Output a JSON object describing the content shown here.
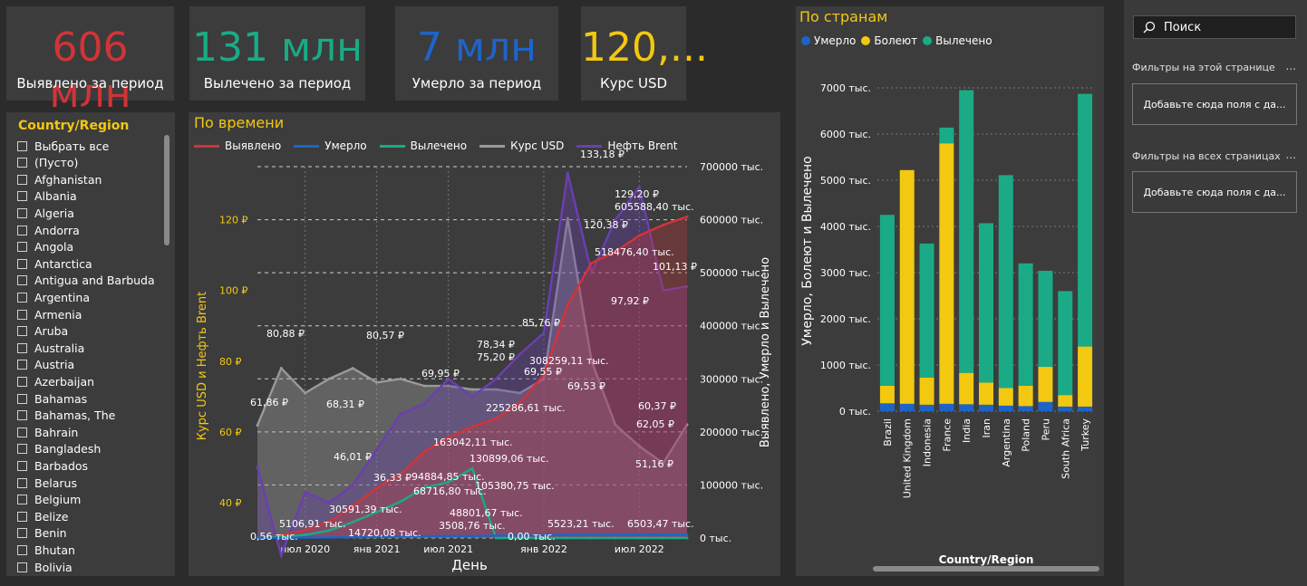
{
  "kpis": [
    {
      "value": "606 млн",
      "label": "Выявлено за период",
      "color": "#d13438"
    },
    {
      "value": "131 млн",
      "label": "Вылечено за период",
      "color": "#1aab86"
    },
    {
      "value": "7 млн",
      "label": "Умерло за период",
      "color": "#1e64c8"
    },
    {
      "value": "120,...",
      "label": "Курс USD",
      "color": "#f2c811"
    }
  ],
  "slicer": {
    "title": "Country/Region",
    "items": [
      "Выбрать все",
      "(Пусто)",
      "Afghanistan",
      "Albania",
      "Algeria",
      "Andorra",
      "Angola",
      "Antarctica",
      "Antigua and Barbuda",
      "Argentina",
      "Armenia",
      "Aruba",
      "Australia",
      "Austria",
      "Azerbaijan",
      "Bahamas",
      "Bahamas, The",
      "Bahrain",
      "Bangladesh",
      "Barbados",
      "Belarus",
      "Belgium",
      "Belize",
      "Benin",
      "Bhutan",
      "Bolivia"
    ]
  },
  "time_chart": {
    "title": "По времени",
    "legend": [
      {
        "name": "Выявлено",
        "color": "#d13438"
      },
      {
        "name": "Умерло",
        "color": "#1e64c8"
      },
      {
        "name": "Вылечено",
        "color": "#1aab86"
      },
      {
        "name": "Курс USD",
        "color": "#9a9a9a"
      },
      {
        "name": "Нефть Brent",
        "color": "#6b3fb0"
      }
    ],
    "y_left_label": "Курс USD и Нефть Brent",
    "y_right_label": "Выявлено, Умерло и Вылечено",
    "x_label": "День",
    "left_ticks": [
      "120 ₽",
      "100 ₽",
      "80 ₽",
      "60 ₽",
      "40 ₽"
    ],
    "right_ticks": [
      "700000 тыс.",
      "600000 тыс.",
      "500000 тыс.",
      "400000 тыс.",
      "300000 тыс.",
      "200000 тыс.",
      "100000 тыс.",
      "0 тыс."
    ],
    "x_ticks": [
      "июл 2020",
      "янв 2021",
      "июл 2021",
      "янв 2022",
      "июл 2022"
    ],
    "labels": [
      "133,18 ₽",
      "129,20 ₽",
      "605588,40 тыс.",
      "120,38 ₽",
      "518476,40 тыс.",
      "101,13 ₽",
      "97,92 ₽",
      "85,76 ₽",
      "308259,11 тыс.",
      "80,88 ₽",
      "80,57 ₽",
      "78,34 ₽",
      "75,20 ₽",
      "69,95 ₽",
      "69,55 ₽",
      "69,53 ₽",
      "61,86 ₽",
      "68,31 ₽",
      "225286,61 тыс.",
      "60,37 ₽",
      "62,05 ₽",
      "163042,11 тыс.",
      "130899,06 тыс.",
      "51,16 ₽",
      "46,01 ₽",
      "94884,85 тыс.",
      "36,33 ₽",
      "68716,80 тыс.",
      "105380,75 тыс.",
      "30591,39 тыс.",
      "48801,67 тыс.",
      "5106,91 тыс.",
      "14720,08 тыс.",
      "3508,76 тыс.",
      "5523,21 тыс.",
      "6503,47 тыс.",
      "0,56 тыс.",
      "0,00 тыс."
    ]
  },
  "chart_data": [
    {
      "type": "line",
      "title": "По времени",
      "xlabel": "День",
      "ylabel_left": "Курс USD и Нефть Brent",
      "ylabel_right": "Выявлено, Умерло и Вылечено",
      "x": [
        "2020-03",
        "2020-05",
        "2020-07",
        "2020-09",
        "2020-11",
        "2021-01",
        "2021-03",
        "2021-05",
        "2021-07",
        "2021-08",
        "2021-09",
        "2021-11",
        "2022-01",
        "2022-03",
        "2022-04",
        "2022-05",
        "2022-07",
        "2022-08",
        "2022-10"
      ],
      "series": [
        {
          "name": "Курс USD",
          "axis": "left",
          "values": [
            61.86,
            78.0,
            71.0,
            75.0,
            78.0,
            74.0,
            75.0,
            73.0,
            73.0,
            72.0,
            72.0,
            71.0,
            75.0,
            120.38,
            80.0,
            62.0,
            56.0,
            51.16,
            62.05
          ]
        },
        {
          "name": "Нефть Brent",
          "axis": "left",
          "values": [
            50.0,
            25.0,
            43.0,
            40.0,
            45.0,
            55.0,
            65.0,
            68.0,
            75.0,
            70.0,
            75.0,
            82.0,
            88.0,
            133.18,
            105.0,
            120.0,
            129.2,
            100.0,
            101.13
          ]
        },
        {
          "name": "Выявлено",
          "axis": "right",
          "unit": "тыс.",
          "values": [
            0.56,
            5106.91,
            14720.08,
            30591.39,
            60000,
            94884.85,
            120000,
            163042.11,
            190000,
            210000,
            225286.61,
            255000,
            308259.11,
            440000,
            518476.4,
            540000,
            570000,
            590000,
            605588.4
          ]
        },
        {
          "name": "Вылечено",
          "axis": "right",
          "unit": "тыс.",
          "values": [
            0,
            2000,
            6000,
            14000,
            30000,
            48801.67,
            68716.8,
            95000,
            105380.75,
            130899.06,
            0.0,
            0.0,
            0.0,
            0.0,
            0.0,
            0.0,
            0.0,
            0.0,
            0.0
          ]
        },
        {
          "name": "Умерло",
          "axis": "right",
          "unit": "тыс.",
          "values": [
            0,
            200,
            600,
            1000,
            1500,
            2000,
            2600,
            3200,
            3508.76,
            4000,
            4500,
            5000,
            5523.21,
            6000,
            6100,
            6200,
            6300,
            6400,
            6503.47
          ]
        }
      ],
      "ylim_left": [
        30,
        135
      ],
      "ylim_right": [
        0,
        700000
      ]
    },
    {
      "type": "bar",
      "title": "По странам",
      "stacked": true,
      "xlabel": "Country/Region",
      "ylabel": "Умерло, Болеют и Вылечено",
      "categories": [
        "Brazil",
        "United Kingdom",
        "Indonesia",
        "France",
        "India",
        "Iran",
        "Argentina",
        "Poland",
        "Peru",
        "South Africa",
        "Turkey"
      ],
      "series": [
        {
          "name": "Умерло",
          "color": "#1e64c8",
          "values": [
            170,
            160,
            140,
            160,
            150,
            140,
            120,
            110,
            200,
            100,
            100
          ]
        },
        {
          "name": "Болеют",
          "color": "#f2c811",
          "values": [
            380,
            5060,
            590,
            5640,
            680,
            480,
            380,
            440,
            760,
            250,
            1300
          ]
        },
        {
          "name": "Вылечено",
          "color": "#1aab86",
          "values": [
            3700,
            0,
            2900,
            340,
            6120,
            3450,
            4610,
            2650,
            2080,
            2250,
            5470
          ]
        }
      ],
      "unit": "тыс.",
      "ylim": [
        0,
        7000
      ],
      "y_ticks": [
        "7000 тыс.",
        "6000 тыс.",
        "5000 тыс.",
        "4000 тыс.",
        "3000 тыс.",
        "2000 тыс.",
        "1000 тыс.",
        "0 тыс."
      ],
      "legend_position": "top-left"
    }
  ],
  "country_chart": {
    "title": "По странам",
    "legend": [
      {
        "name": "Умерло",
        "color": "#1e64c8"
      },
      {
        "name": "Болеют",
        "color": "#f2c811"
      },
      {
        "name": "Вылечено",
        "color": "#1aab86"
      }
    ],
    "y_label": "Умерло, Болеют и Вылечено",
    "x_label": "Country/Region"
  },
  "filters": {
    "search_placeholder": "Поиск",
    "page_header": "Фильтры на этой странице",
    "page_drop": "Добавьте сюда поля с да...",
    "all_header": "Фильтры на всех страницах",
    "all_drop": "Добавьте сюда поля с да...",
    "more": "..."
  }
}
